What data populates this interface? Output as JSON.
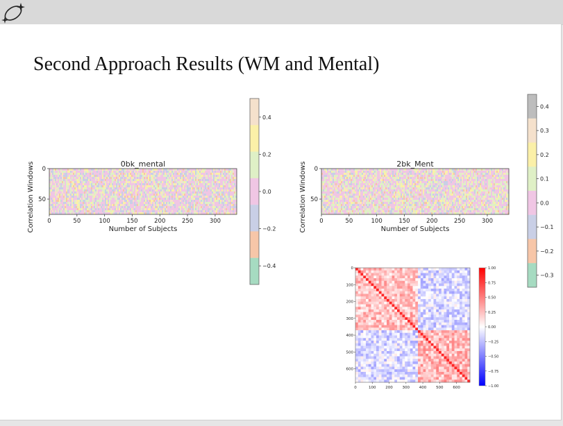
{
  "slide": {
    "title": "Second Approach Results (WM and Mental)"
  },
  "icons": {
    "logo": "sparkle-atom-icon"
  },
  "colors": {
    "band_palette": [
      "#a6dbc1",
      "#f7c6a8",
      "#c9cfe6",
      "#f0c6e4",
      "#dff0c6",
      "#fbf0a8",
      "#f5e1cc",
      "#bdbdbd"
    ],
    "corr_neg": "#0000ff",
    "corr_mid": "#ffffff",
    "corr_pos": "#ff0000"
  },
  "chart_data": [
    {
      "type": "heatmap",
      "title": "0bk_mental",
      "xlabel": "Number of Subjects",
      "ylabel": "Correlation Windows",
      "xticks": [
        0,
        50,
        100,
        150,
        200,
        250,
        300
      ],
      "yticks": [
        0,
        50
      ],
      "xlim": [
        0,
        339
      ],
      "ylim": [
        0,
        75
      ],
      "colorbar": {
        "ticks": [
          "0.4",
          "0.2",
          "0.0",
          "−0.2",
          "−0.4"
        ],
        "range": [
          -0.5,
          0.5
        ]
      }
    },
    {
      "type": "heatmap",
      "title": "2bk_Ment",
      "xlabel": "Number of Subjects",
      "ylabel": "Correlation Windows",
      "xticks": [
        0,
        50,
        100,
        150,
        200,
        250,
        300
      ],
      "yticks": [
        0,
        50
      ],
      "xlim": [
        0,
        339
      ],
      "ylim": [
        0,
        75
      ],
      "colorbar": {
        "ticks": [
          "0.4",
          "0.3",
          "0.2",
          "0.1",
          "0.0",
          "−0.1",
          "−0.2",
          "−0.3"
        ],
        "range": [
          -0.35,
          0.45
        ]
      }
    },
    {
      "type": "heatmap",
      "title": "",
      "xticks": [
        "0",
        "100",
        "200",
        "300",
        "400",
        "500",
        "600"
      ],
      "yticks": [
        "0",
        "100",
        "200",
        "300",
        "400",
        "500",
        "600"
      ],
      "xlim": [
        0,
        680
      ],
      "ylim": [
        0,
        680
      ],
      "colorbar": {
        "ticks": [
          "1.00",
          "0.75",
          "0.50",
          "0.25",
          "0.00",
          "−0.25",
          "−0.50",
          "−0.75",
          "−1.00"
        ],
        "range": [
          -1,
          1
        ]
      }
    }
  ]
}
